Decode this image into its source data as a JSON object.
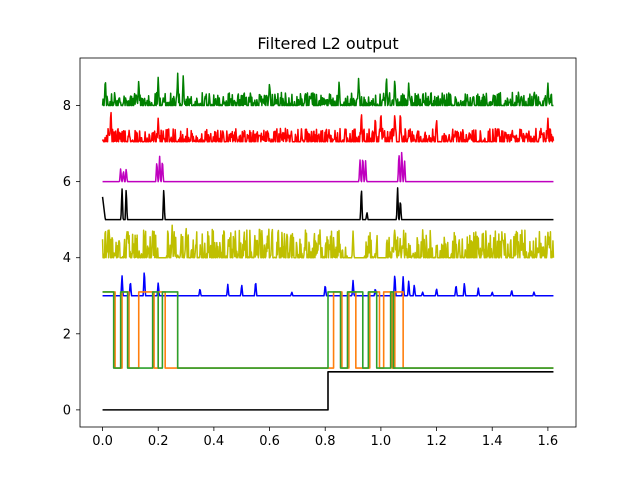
{
  "chart_data": {
    "type": "line",
    "title": "Filtered L2 output",
    "xlabel": "",
    "ylabel": "",
    "xlim": [
      -0.081,
      1.701
    ],
    "ylim": [
      -0.45,
      9.25
    ],
    "xticks": [
      0.0,
      0.2,
      0.4,
      0.6,
      0.8,
      1.0,
      1.2,
      1.4,
      1.6
    ],
    "xtick_labels": [
      "0.0",
      "0.2",
      "0.4",
      "0.6",
      "0.8",
      "1.0",
      "1.2",
      "1.4",
      "1.6"
    ],
    "yticks": [
      0,
      2,
      4,
      6,
      8
    ],
    "ytick_labels": [
      "0",
      "2",
      "4",
      "6",
      "8"
    ],
    "grid": false,
    "legend": "none",
    "series": [
      {
        "color": "#008000",
        "kind": "noise",
        "x_range": [
          0.0,
          1.62
        ],
        "baseline": 8.0,
        "typical_amplitude": 0.35,
        "peaks": [
          [
            0.01,
            8.75
          ],
          [
            0.13,
            8.7
          ],
          [
            0.2,
            8.78
          ],
          [
            0.27,
            8.85
          ],
          [
            0.29,
            8.82
          ],
          [
            0.6,
            8.65
          ],
          [
            0.85,
            8.68
          ],
          [
            0.92,
            8.75
          ],
          [
            1.02,
            8.82
          ],
          [
            1.05,
            8.75
          ],
          [
            1.1,
            8.62
          ],
          [
            1.6,
            8.62
          ]
        ]
      },
      {
        "color": "#ff0000",
        "kind": "noise",
        "x_range": [
          0.0,
          1.62
        ],
        "baseline": 7.05,
        "typical_amplitude": 0.35,
        "peaks": [
          [
            0.03,
            7.95
          ],
          [
            0.2,
            7.7
          ],
          [
            0.93,
            7.88
          ],
          [
            0.98,
            7.75
          ],
          [
            1.0,
            7.9
          ],
          [
            1.05,
            7.85
          ],
          [
            1.07,
            7.9
          ],
          [
            1.2,
            7.7
          ],
          [
            1.6,
            7.7
          ]
        ]
      },
      {
        "color": "#bf00bf",
        "kind": "spikes",
        "x_range": [
          0.0,
          1.62
        ],
        "baseline": 6.0,
        "peaks": [
          [
            0.065,
            6.35
          ],
          [
            0.075,
            6.3
          ],
          [
            0.085,
            6.35
          ],
          [
            0.195,
            6.55
          ],
          [
            0.205,
            6.7
          ],
          [
            0.215,
            6.6
          ],
          [
            0.925,
            6.6
          ],
          [
            0.935,
            6.7
          ],
          [
            0.945,
            6.55
          ],
          [
            1.065,
            6.8
          ],
          [
            1.075,
            6.85
          ],
          [
            1.085,
            6.6
          ]
        ]
      },
      {
        "color": "#000000",
        "kind": "spikes",
        "x_range": [
          0.0,
          1.62
        ],
        "baseline": 5.0,
        "start_value": 5.6,
        "peaks": [
          [
            0.07,
            5.85
          ],
          [
            0.085,
            5.85
          ],
          [
            0.22,
            5.85
          ],
          [
            0.93,
            5.88
          ],
          [
            0.95,
            5.2
          ],
          [
            1.06,
            5.88
          ],
          [
            1.07,
            5.55
          ]
        ]
      },
      {
        "color": "#bfbf00",
        "kind": "noise",
        "x_range": [
          0.0,
          1.62
        ],
        "baseline": 4.0,
        "typical_amplitude": 0.75,
        "gaps": [
          [
            0.2,
            0.23
          ],
          [
            0.88,
            0.94
          ],
          [
            0.99,
            1.02
          ]
        ],
        "peaks": [
          [
            0.18,
            4.7
          ],
          [
            0.25,
            4.9
          ],
          [
            0.3,
            4.9
          ],
          [
            0.9,
            4.7
          ],
          [
            1.05,
            4.85
          ],
          [
            1.6,
            4.7
          ]
        ]
      },
      {
        "color": "#0000ff",
        "kind": "spikes",
        "x_range": [
          0.0,
          1.62
        ],
        "baseline": 3.0,
        "peaks": [
          [
            0.07,
            3.55
          ],
          [
            0.1,
            3.4
          ],
          [
            0.15,
            3.7
          ],
          [
            0.2,
            3.35
          ],
          [
            0.35,
            3.2
          ],
          [
            0.45,
            3.3
          ],
          [
            0.5,
            3.3
          ],
          [
            0.55,
            3.4
          ],
          [
            0.68,
            3.1
          ],
          [
            0.8,
            3.3
          ],
          [
            0.9,
            3.4
          ],
          [
            0.98,
            3.2
          ],
          [
            1.05,
            3.6
          ],
          [
            1.08,
            3.5
          ],
          [
            1.1,
            3.4
          ],
          [
            1.12,
            3.3
          ],
          [
            1.15,
            3.1
          ],
          [
            1.2,
            3.2
          ],
          [
            1.27,
            3.3
          ],
          [
            1.3,
            3.35
          ],
          [
            1.35,
            3.2
          ],
          [
            1.4,
            3.1
          ],
          [
            1.47,
            3.15
          ],
          [
            1.55,
            3.1
          ]
        ]
      },
      {
        "color": "#ff7f0e",
        "kind": "step",
        "low": 1.1,
        "high": 3.1,
        "points": [
          [
            0.0,
            3.1
          ],
          [
            0.045,
            3.1
          ],
          [
            0.045,
            1.1
          ],
          [
            0.07,
            1.1
          ],
          [
            0.07,
            3.1
          ],
          [
            0.095,
            3.1
          ],
          [
            0.095,
            1.1
          ],
          [
            0.13,
            1.1
          ],
          [
            0.13,
            3.1
          ],
          [
            0.185,
            3.1
          ],
          [
            0.185,
            1.1
          ],
          [
            0.2,
            1.1
          ],
          [
            0.2,
            3.1
          ],
          [
            0.225,
            3.1
          ],
          [
            0.225,
            1.1
          ],
          [
            0.27,
            1.1
          ],
          [
            0.27,
            3.1
          ],
          [
            0.27,
            1.1
          ],
          [
            0.83,
            1.1
          ],
          [
            0.83,
            3.1
          ],
          [
            0.86,
            3.1
          ],
          [
            0.86,
            1.1
          ],
          [
            0.885,
            1.1
          ],
          [
            0.885,
            3.1
          ],
          [
            0.91,
            3.1
          ],
          [
            0.91,
            1.1
          ],
          [
            0.96,
            1.1
          ],
          [
            0.96,
            3.1
          ],
          [
            0.995,
            3.1
          ],
          [
            0.995,
            1.1
          ],
          [
            1.01,
            1.1
          ],
          [
            1.01,
            3.1
          ],
          [
            1.04,
            3.1
          ],
          [
            1.04,
            1.1
          ],
          [
            1.05,
            1.1
          ],
          [
            1.05,
            3.1
          ],
          [
            1.08,
            3.1
          ],
          [
            1.08,
            1.1
          ],
          [
            1.62,
            1.1
          ]
        ]
      },
      {
        "color": "#2ca02c",
        "kind": "step",
        "low": 1.1,
        "high": 3.1,
        "points": [
          [
            0.0,
            3.1
          ],
          [
            0.04,
            3.1
          ],
          [
            0.04,
            1.1
          ],
          [
            0.065,
            1.1
          ],
          [
            0.065,
            3.1
          ],
          [
            0.09,
            3.1
          ],
          [
            0.09,
            1.1
          ],
          [
            0.18,
            1.1
          ],
          [
            0.18,
            3.1
          ],
          [
            0.2,
            3.1
          ],
          [
            0.2,
            1.1
          ],
          [
            0.215,
            1.1
          ],
          [
            0.215,
            3.1
          ],
          [
            0.27,
            3.1
          ],
          [
            0.27,
            1.1
          ],
          [
            0.81,
            1.1
          ],
          [
            0.81,
            3.1
          ],
          [
            0.855,
            3.1
          ],
          [
            0.855,
            1.1
          ],
          [
            0.88,
            1.1
          ],
          [
            0.88,
            3.1
          ],
          [
            0.935,
            3.1
          ],
          [
            0.935,
            1.1
          ],
          [
            0.955,
            1.1
          ],
          [
            0.955,
            3.1
          ],
          [
            0.985,
            3.1
          ],
          [
            0.985,
            1.1
          ],
          [
            1.035,
            1.1
          ],
          [
            1.035,
            3.1
          ],
          [
            1.045,
            3.1
          ],
          [
            1.045,
            1.1
          ],
          [
            1.62,
            1.1
          ]
        ]
      },
      {
        "color": "#000000",
        "kind": "step",
        "low": 0.0,
        "high": 1.0,
        "points": [
          [
            0.0,
            0.0
          ],
          [
            0.81,
            0.0
          ],
          [
            0.81,
            1.0
          ],
          [
            1.62,
            1.0
          ]
        ]
      }
    ]
  }
}
